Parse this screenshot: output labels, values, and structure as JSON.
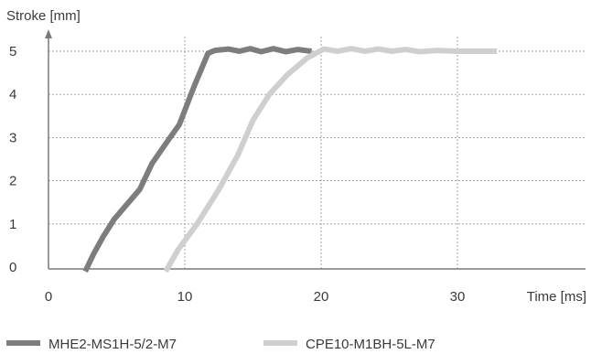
{
  "chart_data": {
    "type": "line",
    "ylabel": "Stroke [mm]",
    "xlabel": "Time [ms]",
    "xlim": [
      0,
      40
    ],
    "ylim": [
      0,
      5.6
    ],
    "xticks": [
      0,
      10,
      20,
      30
    ],
    "yticks": [
      0,
      1,
      2,
      3,
      4,
      5
    ],
    "grid": "dashed",
    "legend_position": "bottom",
    "series": [
      {
        "name": "MHE2-MS1H-5/2-M7",
        "color": "#7d7d7d",
        "points": [
          [
            2.7,
            -0.1
          ],
          [
            3.3,
            0.3
          ],
          [
            4.0,
            0.7
          ],
          [
            4.8,
            1.1
          ],
          [
            6.7,
            1.8
          ],
          [
            7.6,
            2.4
          ],
          [
            8.7,
            2.9
          ],
          [
            9.6,
            3.3
          ],
          [
            10.7,
            4.2
          ],
          [
            11.7,
            4.95
          ],
          [
            12.2,
            5.02
          ],
          [
            13.2,
            5.05
          ],
          [
            14.0,
            5.0
          ],
          [
            14.8,
            5.06
          ],
          [
            15.6,
            4.99
          ],
          [
            16.5,
            5.06
          ],
          [
            17.4,
            4.99
          ],
          [
            18.3,
            5.04
          ],
          [
            19.0,
            5.01
          ],
          [
            19.3,
            5.0
          ]
        ]
      },
      {
        "name": "CPE10-M1BH-5L-M7",
        "color": "#cfcfcf",
        "points": [
          [
            8.6,
            -0.1
          ],
          [
            9.5,
            0.4
          ],
          [
            10.9,
            1.0
          ],
          [
            12.5,
            1.8
          ],
          [
            13.9,
            2.6
          ],
          [
            15.0,
            3.4
          ],
          [
            16.2,
            4.0
          ],
          [
            17.5,
            4.45
          ],
          [
            19.0,
            4.85
          ],
          [
            20.2,
            5.05
          ],
          [
            21.2,
            5.0
          ],
          [
            22.2,
            5.06
          ],
          [
            23.2,
            5.0
          ],
          [
            24.2,
            5.05
          ],
          [
            25.2,
            5.0
          ],
          [
            26.2,
            5.04
          ],
          [
            27.2,
            4.99
          ],
          [
            28.5,
            5.02
          ],
          [
            30.0,
            5.0
          ],
          [
            32.9,
            5.0
          ]
        ]
      }
    ]
  }
}
